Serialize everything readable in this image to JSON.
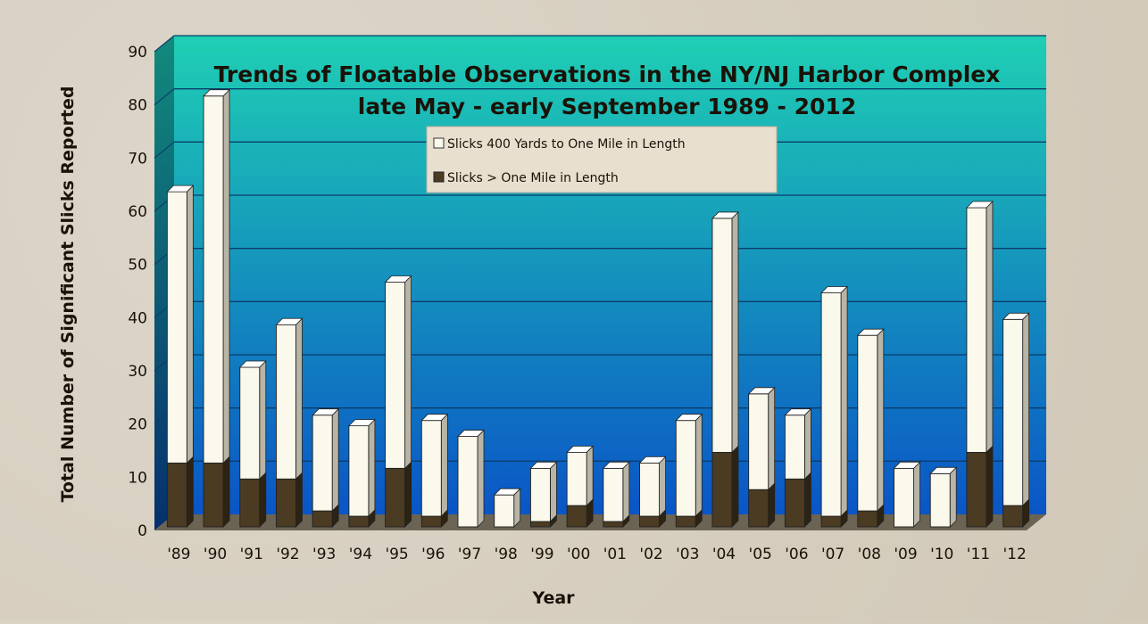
{
  "chart_data": {
    "type": "bar",
    "stacked": true,
    "title": "Trends of Floatable Observations in the NY/NJ Harbor Complex",
    "subtitle": "late May - early September 1989 - 2012",
    "xlabel": "Year",
    "ylabel": "Total Number of Significant Slicks Reported",
    "ylim": [
      0,
      90
    ],
    "yticks": [
      0,
      10,
      20,
      30,
      40,
      50,
      60,
      70,
      80,
      90
    ],
    "grid": true,
    "legend_position": "top-center",
    "categories": [
      "'89",
      "'90",
      "'91",
      "'92",
      "'93",
      "'94",
      "'95",
      "'96",
      "'97",
      "'98",
      "'99",
      "'00",
      "'01",
      "'02",
      "'03",
      "'04",
      "'05",
      "'06",
      "'07",
      "'08",
      "'09",
      "'10",
      "'11",
      "'12"
    ],
    "series": [
      {
        "name": "Slicks > One Mile in Length",
        "color": "#4a3b22",
        "values": [
          12,
          12,
          9,
          9,
          3,
          2,
          11,
          2,
          0,
          0,
          1,
          4,
          1,
          2,
          2,
          14,
          7,
          9,
          2,
          3,
          0,
          0,
          14,
          4
        ]
      },
      {
        "name": "Slicks 400 Yards to One Mile in Length",
        "color": "#fbf9ec",
        "values": [
          51,
          69,
          21,
          29,
          18,
          17,
          35,
          18,
          17,
          6,
          10,
          10,
          10,
          10,
          18,
          44,
          18,
          12,
          42,
          33,
          11,
          10,
          46,
          35
        ]
      }
    ],
    "totals": [
      63,
      81,
      30,
      38,
      21,
      19,
      46,
      20,
      17,
      6,
      11,
      14,
      11,
      12,
      20,
      58,
      25,
      21,
      44,
      36,
      11,
      10,
      60,
      39
    ],
    "colors": {
      "plot_top": "#1fcfb4",
      "plot_bottom": "#0a55c6",
      "grid_line": "#0b3d6b",
      "floor": "#6b6353"
    }
  }
}
